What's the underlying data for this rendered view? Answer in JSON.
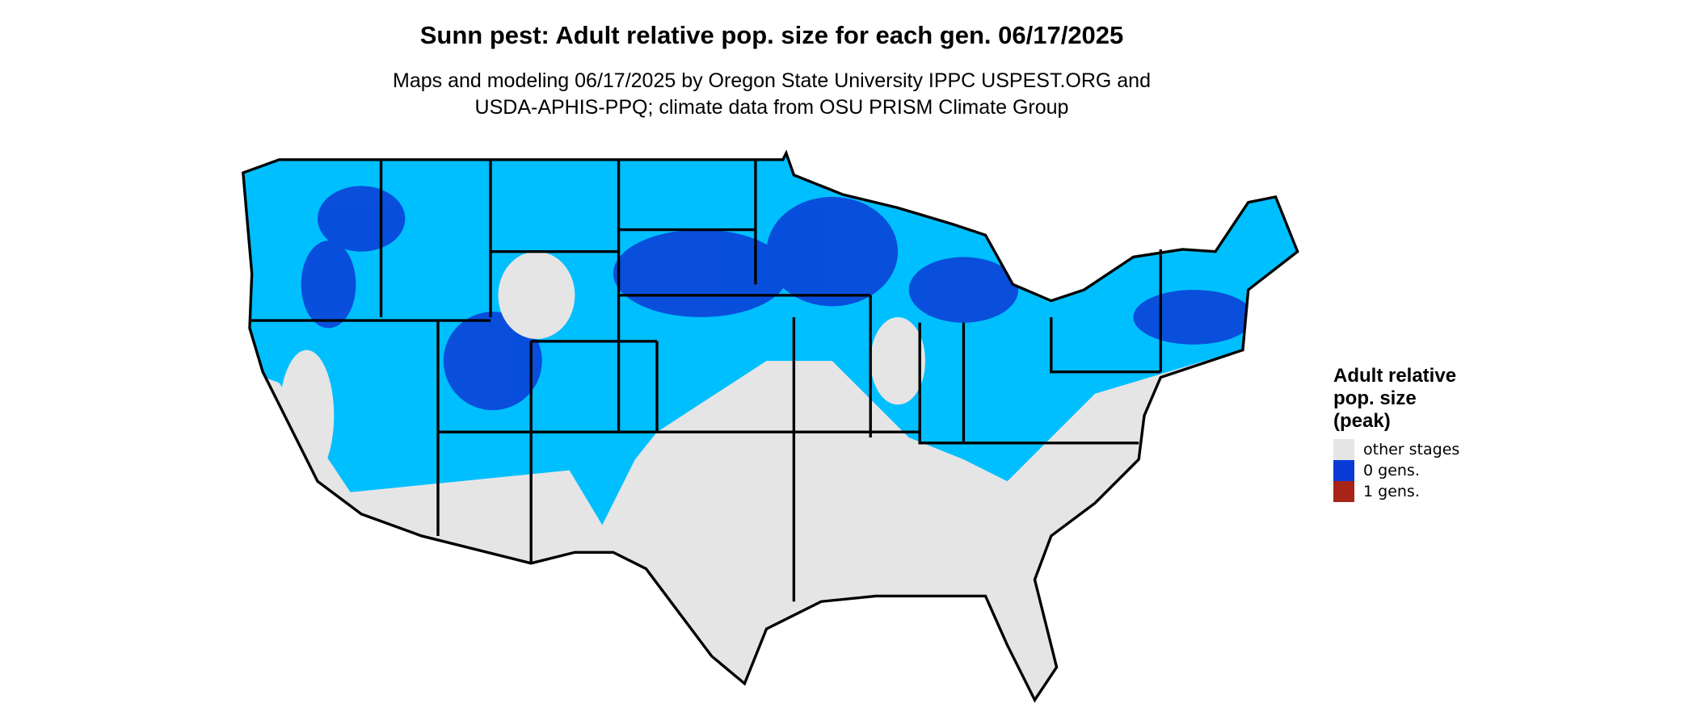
{
  "header": {
    "title": "Sunn pest: Adult relative pop. size for each gen. 06/17/2025",
    "subtitle": [
      "Maps and modeling 06/17/2025 by Oregon State University IPPC USPEST.ORG and",
      "USDA-APHIS-PPQ; climate data from OSU PRISM Climate Group"
    ]
  },
  "legend": {
    "title": [
      "Adult relative",
      "pop. size",
      "(peak)"
    ],
    "items": [
      {
        "label": "other stages",
        "color": "#e5e5e5"
      },
      {
        "label": "0 gens.",
        "color": "#0a3bd6"
      },
      {
        "label": "1 gens.",
        "color": "#a82318"
      }
    ]
  }
}
